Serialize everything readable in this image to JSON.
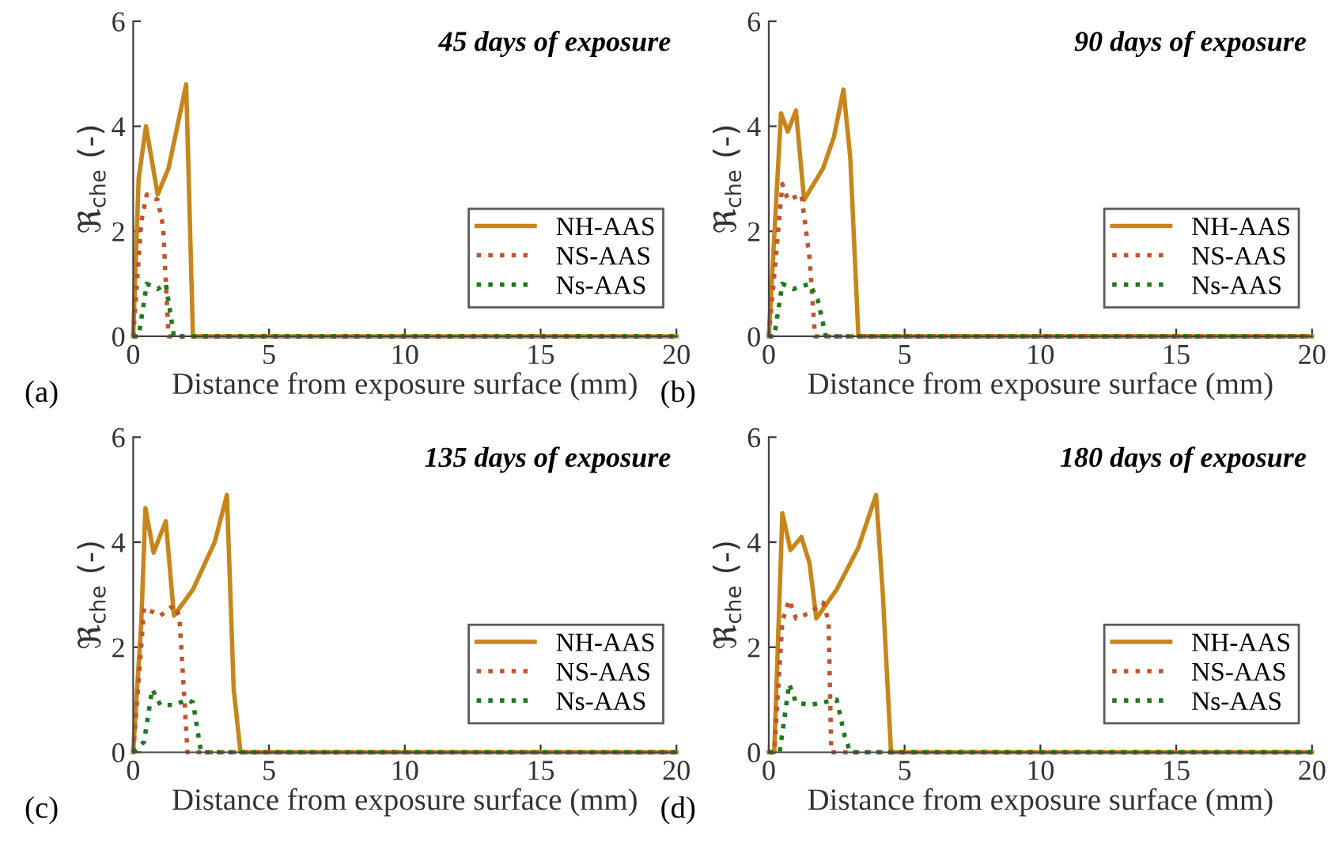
{
  "chart_data": [
    {
      "type": "line",
      "title": "45 days of exposure",
      "xlabel": "Distance from exposure surface (mm)",
      "ylabel": "ℜ$_{che}$ (-)",
      "annotations": [
        "(a)"
      ],
      "xlim": [
        0,
        20
      ],
      "ylim": [
        0,
        6
      ],
      "xticks": [
        0,
        5,
        10,
        15,
        20
      ],
      "yticks": [
        0,
        2,
        4,
        6
      ],
      "grid": false,
      "legend": "bottom right",
      "marker": "none",
      "series": [
        {
          "name": "NH-AAS",
          "color": "#c8861a",
          "line_style": "solid",
          "x": [
            0,
            0.2,
            0.47,
            0.9,
            1.3,
            1.95,
            2.2,
            20
          ],
          "values": [
            0,
            3.0,
            4.0,
            2.7,
            3.2,
            4.8,
            0,
            0
          ]
        },
        {
          "name": "NS-AAS",
          "color": "#c0562e",
          "line_style": "dotted",
          "x": [
            0,
            0.3,
            0.5,
            0.9,
            1.1,
            1.3,
            20
          ],
          "values": [
            0,
            2.2,
            2.7,
            2.6,
            2.1,
            0,
            0
          ]
        },
        {
          "name": "Ns-AAS",
          "color": "#1f7a1f",
          "line_style": "dotted",
          "x": [
            0,
            0.2,
            0.5,
            0.9,
            1.2,
            1.5,
            20
          ],
          "values": [
            0,
            0,
            1.0,
            0.9,
            1.0,
            0,
            0
          ]
        }
      ]
    },
    {
      "type": "line",
      "title": "90 days of exposure",
      "xlabel": "Distance from exposure surface (mm)",
      "ylabel": "ℜ$_{che}$ (-)",
      "annotations": [
        "(b)"
      ],
      "xlim": [
        0,
        20
      ],
      "ylim": [
        0,
        6
      ],
      "xticks": [
        0,
        5,
        10,
        15,
        20
      ],
      "yticks": [
        0,
        2,
        4,
        6
      ],
      "grid": false,
      "legend": "bottom right",
      "marker": "none",
      "series": [
        {
          "name": "NH-AAS",
          "color": "#c8861a",
          "line_style": "solid",
          "x": [
            0,
            0.45,
            0.7,
            1.0,
            1.3,
            2.0,
            2.4,
            2.75,
            3.0,
            3.3,
            20
          ],
          "values": [
            0,
            4.25,
            3.9,
            4.3,
            2.6,
            3.2,
            3.8,
            4.7,
            3.4,
            0,
            0
          ]
        },
        {
          "name": "NS-AAS",
          "color": "#c0562e",
          "line_style": "dotted",
          "x": [
            0,
            0.5,
            0.7,
            1.2,
            1.5,
            1.7,
            20
          ],
          "values": [
            0,
            2.9,
            2.6,
            2.7,
            1.5,
            0,
            0
          ]
        },
        {
          "name": "Ns-AAS",
          "color": "#1f7a1f",
          "line_style": "dotted",
          "x": [
            0,
            0.2,
            0.5,
            0.9,
            1.5,
            1.8,
            2.1,
            20
          ],
          "values": [
            0,
            0,
            1.0,
            0.9,
            1.0,
            0.7,
            0,
            0
          ]
        }
      ]
    },
    {
      "type": "line",
      "title": "135 days of exposure",
      "xlabel": "Distance from exposure surface (mm)",
      "ylabel": "ℜ$_{che}$ (-)",
      "annotations": [
        "(c)"
      ],
      "xlim": [
        0,
        20
      ],
      "ylim": [
        0,
        6
      ],
      "xticks": [
        0,
        5,
        10,
        15,
        20
      ],
      "yticks": [
        0,
        2,
        4,
        6
      ],
      "grid": false,
      "legend": "bottom right",
      "marker": "none",
      "series": [
        {
          "name": "NH-AAS",
          "color": "#c8861a",
          "line_style": "solid",
          "x": [
            0,
            0.3,
            0.45,
            0.75,
            1.2,
            1.5,
            2.2,
            3.0,
            3.45,
            3.7,
            3.95,
            20
          ],
          "values": [
            0,
            2.5,
            4.65,
            3.8,
            4.4,
            2.6,
            3.1,
            4.0,
            4.9,
            1.2,
            0,
            0
          ]
        },
        {
          "name": "NS-AAS",
          "color": "#c0562e",
          "line_style": "dotted",
          "x": [
            0,
            0.4,
            1.0,
            1.5,
            1.7,
            2.0,
            20
          ],
          "values": [
            0,
            2.75,
            2.6,
            2.8,
            2.6,
            0,
            0
          ]
        },
        {
          "name": "Ns-AAS",
          "color": "#1f7a1f",
          "line_style": "dotted",
          "x": [
            0,
            0.4,
            0.7,
            1.0,
            1.5,
            2.0,
            2.2,
            2.5,
            20
          ],
          "values": [
            0,
            0.2,
            1.2,
            0.9,
            0.9,
            1.0,
            0.95,
            0,
            0
          ]
        }
      ]
    },
    {
      "type": "line",
      "title": "180 days of exposure",
      "xlabel": "Distance from exposure surface (mm)",
      "ylabel": "ℜ$_{che}$ (-)",
      "annotations": [
        "(d)"
      ],
      "xlim": [
        0,
        20
      ],
      "ylim": [
        0,
        6
      ],
      "xticks": [
        0,
        5,
        10,
        15,
        20
      ],
      "yticks": [
        0,
        2,
        4,
        6
      ],
      "grid": false,
      "legend": "bottom right",
      "marker": "none",
      "series": [
        {
          "name": "NH-AAS",
          "color": "#c8861a",
          "line_style": "solid",
          "x": [
            0,
            0.2,
            0.5,
            0.8,
            1.2,
            1.5,
            1.75,
            2.5,
            3.3,
            3.95,
            4.2,
            4.5,
            20
          ],
          "values": [
            0,
            0,
            4.55,
            3.85,
            4.1,
            3.6,
            2.55,
            3.1,
            3.9,
            4.9,
            3.0,
            0,
            0
          ]
        },
        {
          "name": "NS-AAS",
          "color": "#c0562e",
          "line_style": "dotted",
          "x": [
            0,
            0.2,
            0.5,
            0.75,
            1.0,
            1.5,
            2.0,
            2.2,
            2.3,
            20
          ],
          "values": [
            0,
            0,
            2.5,
            2.9,
            2.55,
            2.65,
            2.85,
            2.5,
            0,
            0
          ]
        },
        {
          "name": "Ns-AAS",
          "color": "#1f7a1f",
          "line_style": "dotted",
          "x": [
            0,
            0.4,
            0.75,
            1.0,
            1.5,
            2.0,
            2.5,
            2.8,
            3.0,
            20
          ],
          "values": [
            0,
            0,
            1.3,
            0.95,
            0.9,
            0.95,
            1.0,
            0.3,
            0,
            0
          ]
        }
      ]
    }
  ]
}
